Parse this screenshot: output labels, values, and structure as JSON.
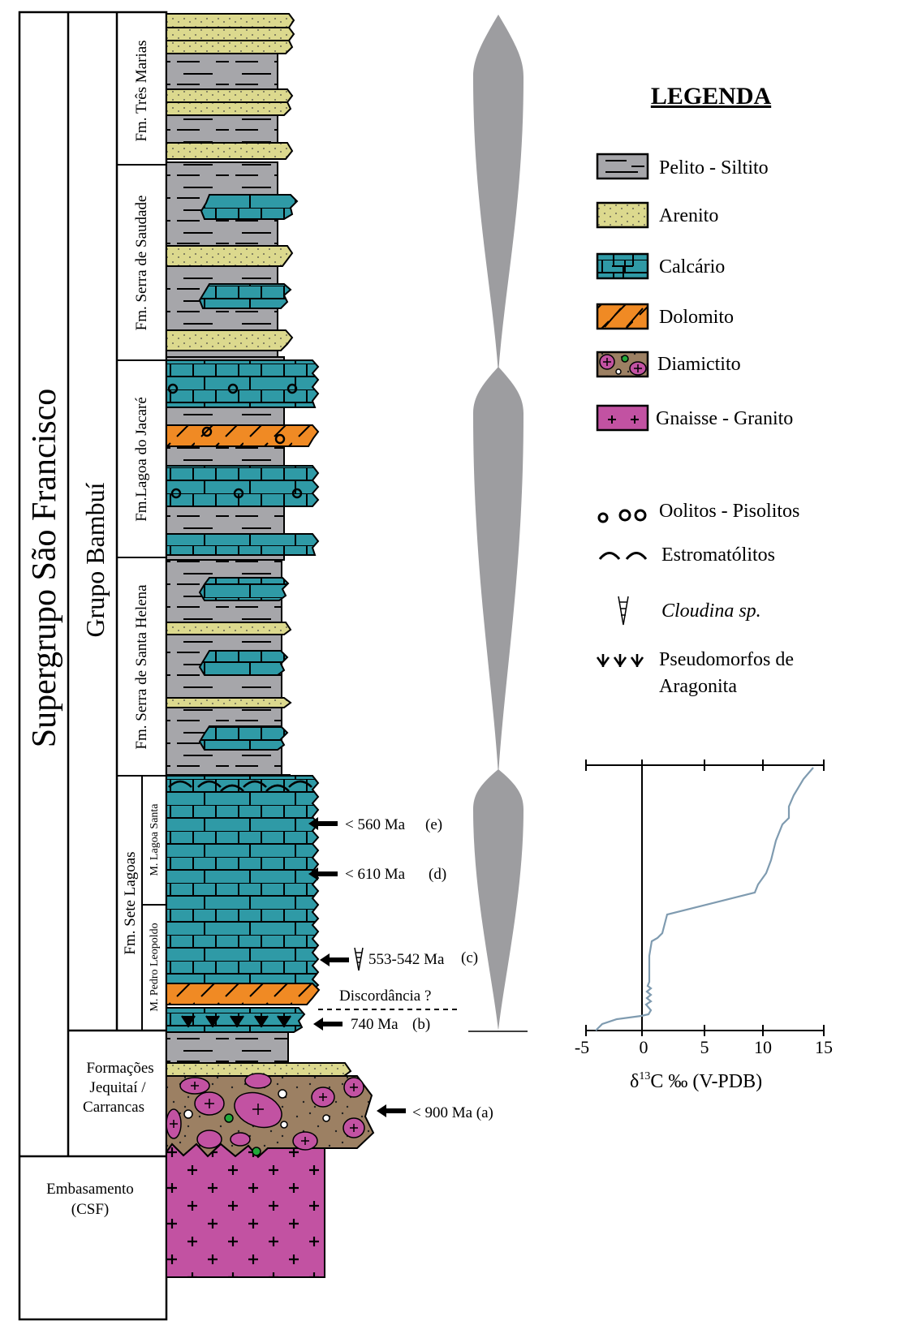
{
  "labels": {
    "supergroup": "Supergrupo São Francisco",
    "group": "Grupo Bambuí",
    "fm_tres_marias": "Fm. Três Marias",
    "fm_serra_saudade": "Fm. Serra de Saudade",
    "fm_lagoa_jacare": "Fm.Lagoa do Jacaré",
    "fm_serra_santa_helena": "Fm. Serra de Santa Helena",
    "fm_sete_lagoas": "Fm. Sete Lagoas",
    "m_lagoa_santa": "M. Lagoa Santa",
    "m_pedro_leopoldo": "M. Pedro Leopoldo",
    "jequitai_1": "Formações",
    "jequitai_2": "Jequitaí /",
    "jequitai_3": "Carrancas",
    "embasamento_1": "Embasamento",
    "embasamento_2": "(CSF)"
  },
  "ages": {
    "e": "< 560 Ma",
    "e_tag": "(e)",
    "d": "< 610 Ma",
    "d_tag": "(d)",
    "c": "553-542 Ma",
    "c_tag": "(c)",
    "b": "740 Ma",
    "b_tag": "(b)",
    "a": "< 900 Ma (a)",
    "discordance": "Discordância ?"
  },
  "legend": {
    "title": "LEGENDA",
    "items": [
      {
        "label": "Pelito - Siltito",
        "color": "#a6a6aa"
      },
      {
        "label": "Arenito",
        "color": "#dcd98e"
      },
      {
        "label": "Calcário",
        "color": "#2f9aa6"
      },
      {
        "label": "Dolomito",
        "color": "#f08a24"
      },
      {
        "label": "Diamictito",
        "color": "#9c8063"
      },
      {
        "label": "Gnaisse - Granito",
        "color": "#c252a2"
      }
    ],
    "symbols": [
      {
        "label": "Oolitos - Pisolitos",
        "icon": "oolite-icon"
      },
      {
        "label": "Estromatólitos",
        "icon": "stromatolite-icon"
      },
      {
        "label": "Cloudina sp.",
        "icon": "cloudina-icon"
      },
      {
        "label": "Pseudomorfos de",
        "icon": "aragonite-icon"
      },
      {
        "label": "Aragonita",
        "icon": ""
      }
    ]
  },
  "chart_data": {
    "type": "line",
    "xlabel_prefix": "δ",
    "xlabel_sup": "13",
    "xlabel_rest": "C ‰ (V-PDB)",
    "ticks": [
      "-5",
      "0",
      "5",
      "10",
      "15"
    ],
    "xlim": [
      -5,
      15
    ]
  }
}
